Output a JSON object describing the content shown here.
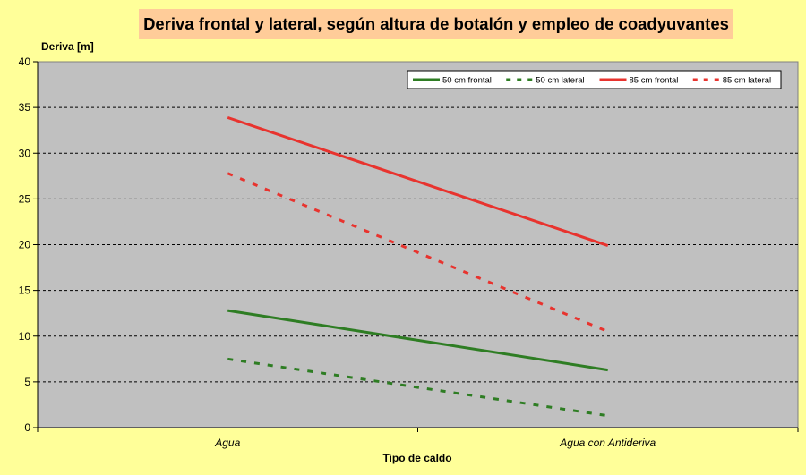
{
  "chart_data": {
    "type": "line",
    "title": "Deriva frontal y lateral, según altura de botalón y empleo de coadyuvantes",
    "ylabel": "Deriva [m]",
    "xlabel": "Tipo de caldo",
    "categories": [
      "Agua",
      "Agua con Antideriva"
    ],
    "ylim": [
      0,
      40
    ],
    "yticks": [
      0,
      5,
      10,
      15,
      20,
      25,
      30,
      35,
      40
    ],
    "grid": true,
    "legend_position": "top-right",
    "series": [
      {
        "name": "50 cm frontal",
        "values": [
          12.8,
          6.3
        ],
        "color": "#2e7d23",
        "dash": false
      },
      {
        "name": "50 cm lateral",
        "values": [
          7.5,
          1.3
        ],
        "color": "#2e7d23",
        "dash": true
      },
      {
        "name": "85 cm frontal",
        "values": [
          33.9,
          19.9
        ],
        "color": "#e8332e",
        "dash": false
      },
      {
        "name": "85 cm lateral",
        "values": [
          27.8,
          10.5
        ],
        "color": "#e8332e",
        "dash": true
      }
    ]
  }
}
